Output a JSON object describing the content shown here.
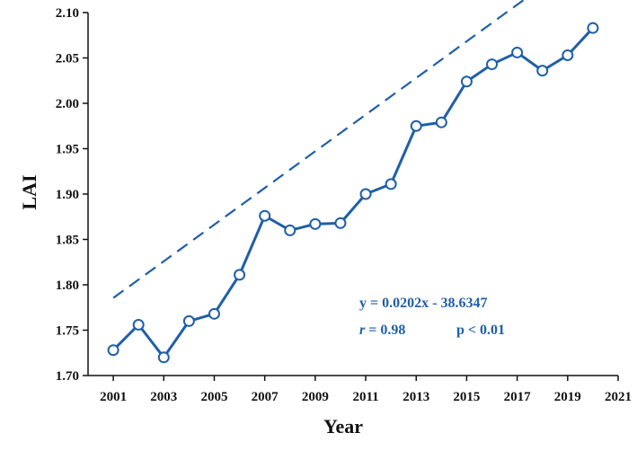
{
  "chart_data": {
    "type": "line",
    "xlabel": "Year",
    "ylabel": "LAI",
    "xlim": [
      2000,
      2021
    ],
    "ylim": [
      1.7,
      2.1
    ],
    "x_ticks": [
      2001,
      2003,
      2005,
      2007,
      2009,
      2011,
      2013,
      2015,
      2017,
      2019,
      2021
    ],
    "y_ticks": [
      1.7,
      1.75,
      1.8,
      1.85,
      1.9,
      1.95,
      2.0,
      2.05,
      2.1
    ],
    "x_tick_labels": [
      "2001",
      "2003",
      "2005",
      "2007",
      "2009",
      "2011",
      "2013",
      "2015",
      "2017",
      "2019",
      "2021"
    ],
    "y_tick_labels": [
      "1.70",
      "1.75",
      "1.80",
      "1.85",
      "1.90",
      "1.95",
      "2.00",
      "2.05",
      "2.10"
    ],
    "series": [
      {
        "x": [
          2001,
          2002,
          2003,
          2004,
          2005,
          2006,
          2007,
          2008,
          2009,
          2010,
          2011,
          2012,
          2013,
          2014,
          2015,
          2016,
          2017,
          2018,
          2019,
          2020
        ],
        "values": [
          1.728,
          1.756,
          1.72,
          1.76,
          1.768,
          1.811,
          1.876,
          1.86,
          1.867,
          1.868,
          1.9,
          1.911,
          1.975,
          1.979,
          2.024,
          2.043,
          2.056,
          2.036,
          2.053,
          2.083
        ],
        "color": "#1f5fa8"
      }
    ],
    "trendline": {
      "slope": 0.0202,
      "intercept": -38.6347,
      "x_range": [
        2001,
        2020
      ],
      "style": "dashed",
      "color": "#1f5fa8"
    },
    "annotations": {
      "equation": "y = 0.0202x - 38.6347",
      "r_symbol": "r",
      "r_value": " = 0.98",
      "p_value": "p < 0.01"
    },
    "grid": false
  }
}
